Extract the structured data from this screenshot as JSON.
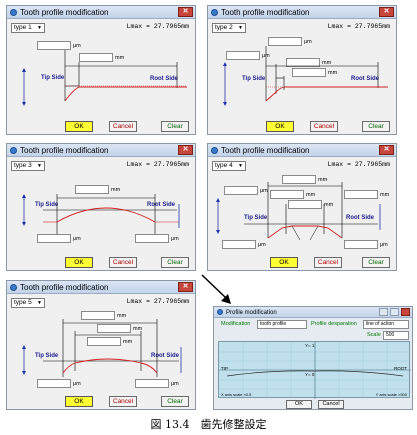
{
  "dialogs": [
    {
      "title": "Tooth profile modification",
      "type": "type 1"
    },
    {
      "title": "Tooth profile modification",
      "type": "type 2"
    },
    {
      "title": "Tooth profile modification",
      "type": "type 3"
    },
    {
      "title": "Tooth profile modification",
      "type": "type 4"
    },
    {
      "title": "Tooth profile modification",
      "type": "type 5"
    }
  ],
  "common": {
    "close_glyph": "✕",
    "lmax": "Lmax = 27.7965mm",
    "tip_side": "Tip Side",
    "root_side": "Root Side",
    "unit_um": "μm",
    "unit_mm": "mm",
    "ok": "OK",
    "cancel": "Cancel",
    "clear": "Clear",
    "dropdown_arrow": "▼"
  },
  "profile_window": {
    "title": "Profile modification",
    "modification_label": "Modification",
    "modification_value": "tooth profile",
    "deviation_label": "Profile desparation",
    "deviation_value": "line of action",
    "scale_label": "Scale",
    "scale_value": "500",
    "top_marker": "Y= 1",
    "bottom_marker": "Y= 0",
    "tip_label": "TIP",
    "root_label": "ROOT",
    "x_axis_note": "X axis scale ×0.5",
    "y_axis_note": "Y axis scale ×500",
    "ok": "OK",
    "cancel": "Cancel"
  },
  "caption": "図 13.4　歯先修整設定"
}
